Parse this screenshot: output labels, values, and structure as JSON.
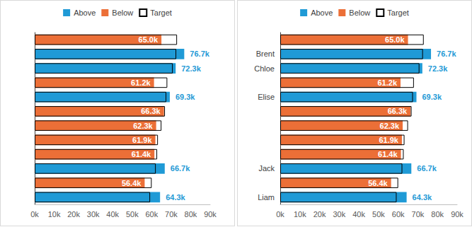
{
  "chart_data": [
    {
      "type": "bar",
      "orientation": "horizontal",
      "legend": "top",
      "grid": false,
      "data_labels": true,
      "categories": [
        null,
        null,
        null,
        null,
        null,
        null,
        null,
        null,
        null,
        null,
        null,
        null
      ],
      "series": [
        {
          "name": "Above",
          "color": "#1f9ad6",
          "values": [
            null,
            76.7,
            72.3,
            null,
            69.3,
            null,
            null,
            null,
            null,
            66.7,
            null,
            64.3
          ],
          "value_labels": [
            null,
            "76.7k",
            "72.3k",
            null,
            "69.3k",
            null,
            null,
            null,
            null,
            "66.7k",
            null,
            "64.3k"
          ]
        },
        {
          "name": "Below",
          "color": "#ec6f37",
          "values": [
            65.0,
            null,
            null,
            61.2,
            null,
            66.3,
            62.3,
            61.9,
            61.4,
            null,
            56.4,
            null
          ],
          "value_labels": [
            "65.0k",
            null,
            null,
            "61.2k",
            null,
            "66.3k",
            "62.3k",
            "61.9k",
            "61.4k",
            null,
            "56.4k",
            null
          ]
        },
        {
          "name": "Target",
          "color": "#000000",
          "values": [
            73.0,
            72.6,
            70.8,
            68.0,
            67.5,
            66.8,
            65.0,
            63.2,
            62.8,
            62.1,
            60.0,
            59.2
          ]
        }
      ],
      "xlim": [
        0,
        90
      ],
      "xticks": [
        {
          "value": 0,
          "label": "0k"
        },
        {
          "value": 10,
          "label": "10k"
        },
        {
          "value": 20,
          "label": "20k"
        },
        {
          "value": 30,
          "label": "30k"
        },
        {
          "value": 40,
          "label": "40k"
        },
        {
          "value": 50,
          "label": "50k"
        },
        {
          "value": 60,
          "label": "60k"
        },
        {
          "value": 70,
          "label": "70k"
        },
        {
          "value": 80,
          "label": "80k"
        },
        {
          "value": 90,
          "label": "90k"
        }
      ]
    },
    {
      "type": "bar",
      "orientation": "horizontal",
      "legend": "top",
      "grid": false,
      "data_labels": true,
      "categories": [
        null,
        "Brent",
        "Chloe",
        null,
        "Elise",
        null,
        null,
        null,
        null,
        "Jack",
        null,
        "Liam"
      ],
      "series": [
        {
          "name": "Above",
          "color": "#1f9ad6",
          "values": [
            null,
            76.7,
            72.3,
            null,
            69.3,
            null,
            null,
            null,
            null,
            66.7,
            null,
            64.3
          ],
          "value_labels": [
            null,
            "76.7k",
            "72.3k",
            null,
            "69.3k",
            null,
            null,
            null,
            null,
            "66.7k",
            null,
            "64.3k"
          ]
        },
        {
          "name": "Below",
          "color": "#ec6f37",
          "values": [
            65.0,
            null,
            null,
            61.2,
            null,
            66.3,
            62.3,
            61.9,
            61.4,
            null,
            56.4,
            null
          ],
          "value_labels": [
            "65.0k",
            null,
            null,
            "61.2k",
            null,
            "66.3k",
            "62.3k",
            "61.9k",
            "61.4k",
            null,
            "56.4k",
            null
          ]
        },
        {
          "name": "Target",
          "color": "#000000",
          "values": [
            73.0,
            72.6,
            70.8,
            68.0,
            67.5,
            66.8,
            65.0,
            63.2,
            62.8,
            62.1,
            60.0,
            59.2
          ]
        }
      ],
      "xlim": [
        0,
        90
      ],
      "xticks": [
        {
          "value": 0,
          "label": "0k"
        },
        {
          "value": 10,
          "label": "10k"
        },
        {
          "value": 20,
          "label": "20k"
        },
        {
          "value": 30,
          "label": "30k"
        },
        {
          "value": 40,
          "label": "40k"
        },
        {
          "value": 50,
          "label": "50k"
        },
        {
          "value": 60,
          "label": "60k"
        },
        {
          "value": 70,
          "label": "70k"
        },
        {
          "value": 80,
          "label": "80k"
        },
        {
          "value": 90,
          "label": "90k"
        }
      ]
    }
  ]
}
